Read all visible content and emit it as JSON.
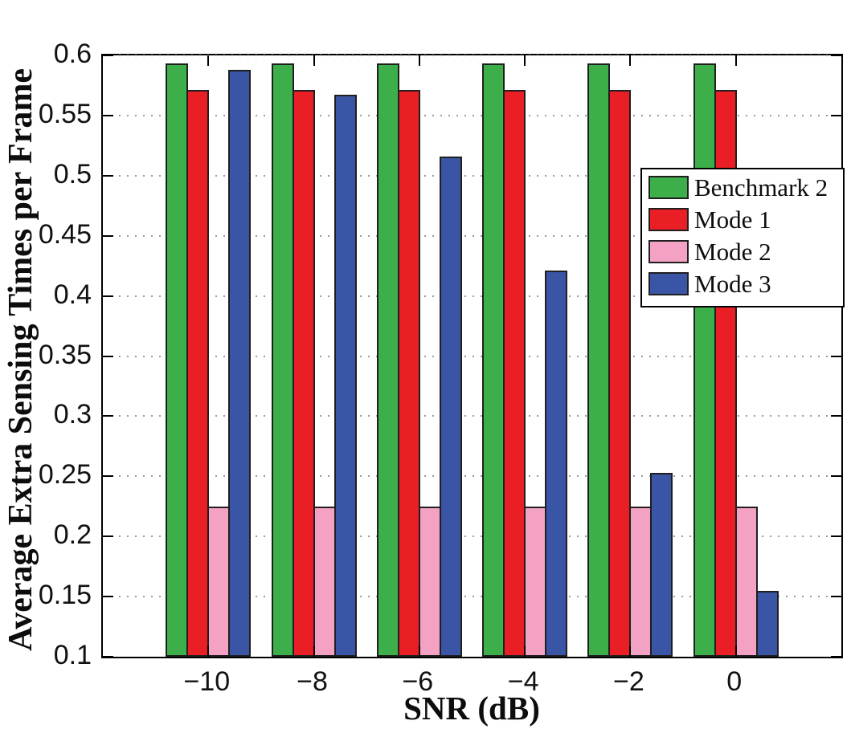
{
  "chart_data": {
    "type": "bar",
    "title": "",
    "xlabel": "SNR (dB)",
    "ylabel": "Average Extra Sensing Times per Frame",
    "categories": [
      -10,
      -8,
      -6,
      -4,
      -2,
      0
    ],
    "xtick_labels": [
      "−10",
      "−8",
      "−6",
      "−4",
      "−2",
      "0"
    ],
    "series": [
      {
        "name": "Benchmark 2",
        "color": "#3daf4a",
        "values": [
          0.593,
          0.593,
          0.593,
          0.593,
          0.593,
          0.593
        ]
      },
      {
        "name": "Mode 1",
        "color": "#ea1f26",
        "values": [
          0.571,
          0.571,
          0.571,
          0.571,
          0.571,
          0.571
        ]
      },
      {
        "name": "Mode 2",
        "color": "#f3a2c3",
        "values": [
          0.225,
          0.225,
          0.225,
          0.225,
          0.225,
          0.225
        ]
      },
      {
        "name": "Mode 3",
        "color": "#3a55a5",
        "values": [
          0.588,
          0.567,
          0.516,
          0.421,
          0.253,
          0.155
        ]
      }
    ],
    "ylim": [
      0.1,
      0.6
    ],
    "xlim": [
      -12,
      2
    ],
    "ytick_step": 0.05,
    "yticks_labels": [
      "0.1",
      "0.15",
      "0.2",
      "0.25",
      "0.3",
      "0.35",
      "0.4",
      "0.45",
      "0.5",
      "0.55",
      "0.6"
    ],
    "grid": "horizontal-dotted",
    "gridline_color": "#9a9a9a",
    "bar_edge_color": "#1f1f1f",
    "axis_color": "#000000",
    "legend_position": "upper-right"
  }
}
